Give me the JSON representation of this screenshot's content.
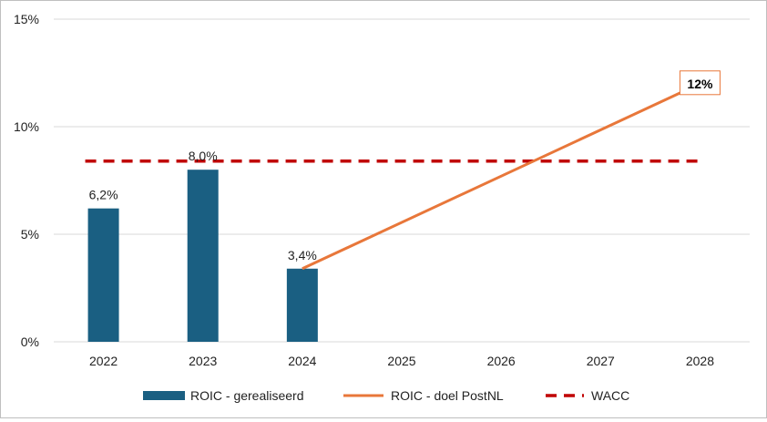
{
  "chart_data": {
    "type": "bar",
    "categories": [
      "2022",
      "2023",
      "2024",
      "2025",
      "2026",
      "2027",
      "2028"
    ],
    "ylim": [
      0,
      15
    ],
    "yticks": [
      0,
      5,
      10,
      15
    ],
    "ytick_labels": [
      "0%",
      "5%",
      "10%",
      "15%"
    ],
    "grid": true,
    "legend_position": "bottom",
    "colors": {
      "bars": "#1a5f82",
      "target_line": "#e8773a",
      "wacc": "#c00000",
      "grid": "#d9d9d9",
      "callout_border": "#e8773a"
    },
    "series": [
      {
        "name": "ROIC - gerealiseerd",
        "type": "bar",
        "values": [
          6.2,
          8.0,
          3.4,
          null,
          null,
          null,
          null
        ],
        "labels": [
          "6,2%",
          "8,0%",
          "3,4%",
          "",
          "",
          "",
          ""
        ]
      },
      {
        "name": "ROIC - doel PostNL",
        "type": "line",
        "points": [
          {
            "x": "2024",
            "y": 3.4
          },
          {
            "x": "2028",
            "y": 12.0
          }
        ],
        "end_label": "12%"
      },
      {
        "name": "WACC",
        "type": "dashed-line",
        "value": 8.4,
        "from": "2022",
        "to": "2028"
      }
    ]
  }
}
